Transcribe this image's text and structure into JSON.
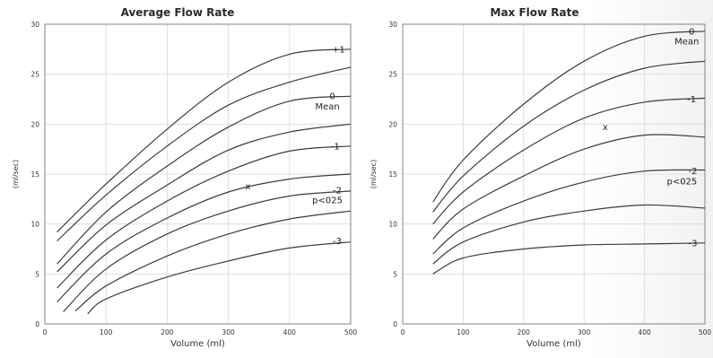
{
  "chart_data": [
    {
      "type": "line",
      "title": "Average Flow Rate",
      "xlabel": "Volume (ml)",
      "ylabel": "(ml/sec)",
      "xlim": [
        0,
        500
      ],
      "ylim": [
        0,
        30
      ],
      "xticks": [
        0,
        100,
        200,
        300,
        400,
        "500"
      ],
      "yticks": [
        0,
        5,
        10,
        15,
        20,
        25,
        30
      ],
      "grid": true,
      "series": [
        {
          "name": "+1",
          "x": [
            20,
            100,
            200,
            300,
            400,
            500
          ],
          "y": [
            9.2,
            14.0,
            19.5,
            24.2,
            27.0,
            27.5
          ]
        },
        {
          "x": [
            20,
            100,
            200,
            300,
            400,
            500
          ],
          "y": [
            8.3,
            12.9,
            17.8,
            21.9,
            24.2,
            25.7
          ]
        },
        {
          "name": "0",
          "x": [
            20,
            100,
            200,
            300,
            400,
            500
          ],
          "y": [
            6.0,
            11.2,
            15.8,
            19.7,
            22.3,
            22.8
          ]
        },
        {
          "x": [
            20,
            100,
            200,
            300,
            400,
            500
          ],
          "y": [
            5.2,
            9.9,
            13.9,
            17.4,
            19.2,
            20.0
          ]
        },
        {
          "name": "-1",
          "x": [
            20,
            100,
            200,
            300,
            400,
            500
          ],
          "y": [
            3.6,
            8.4,
            12.3,
            15.3,
            17.3,
            17.8
          ]
        },
        {
          "x": [
            20,
            100,
            200,
            300,
            400,
            500
          ],
          "y": [
            2.2,
            7.0,
            10.6,
            13.2,
            14.5,
            15.0
          ]
        },
        {
          "name": "-2",
          "x": [
            30,
            100,
            200,
            300,
            400,
            500
          ],
          "y": [
            1.2,
            5.5,
            9.0,
            11.3,
            12.8,
            13.3
          ]
        },
        {
          "x": [
            50,
            100,
            200,
            300,
            400,
            500
          ],
          "y": [
            1.3,
            3.8,
            6.8,
            9.0,
            10.5,
            11.3
          ]
        },
        {
          "name": "-3",
          "x": [
            70,
            100,
            200,
            300,
            400,
            500
          ],
          "y": [
            1.0,
            2.5,
            4.7,
            6.3,
            7.6,
            8.2
          ]
        }
      ],
      "annotations": [
        {
          "text": "+1",
          "x": 480,
          "y": 27.5
        },
        {
          "text": "0",
          "x": 470,
          "y": 22.8
        },
        {
          "text": "Mean",
          "x": 462,
          "y": 21.8
        },
        {
          "text": "-1",
          "x": 475,
          "y": 17.8
        },
        {
          "text": "-2",
          "x": 478,
          "y": 13.4
        },
        {
          "text": "p<025",
          "x": 462,
          "y": 12.4
        },
        {
          "text": "-3",
          "x": 478,
          "y": 8.3
        },
        {
          "text": "x",
          "x": 332,
          "y": 13.8
        }
      ]
    },
    {
      "type": "line",
      "title": "Max Flow Rate",
      "xlabel": "Volume (ml)",
      "ylabel": "(ml/sec)",
      "xlim": [
        0,
        500
      ],
      "ylim": [
        0,
        30
      ],
      "xticks": [
        0,
        100,
        200,
        300,
        400,
        "500"
      ],
      "yticks": [
        0,
        5,
        10,
        15,
        20,
        25,
        30
      ],
      "grid": true,
      "series": [
        {
          "name": "0",
          "x": [
            50,
            100,
            200,
            300,
            400,
            500
          ],
          "y": [
            12.2,
            16.4,
            22.0,
            26.3,
            28.8,
            29.3
          ]
        },
        {
          "x": [
            50,
            100,
            200,
            300,
            400,
            500
          ],
          "y": [
            11.2,
            14.8,
            19.8,
            23.4,
            25.6,
            26.3
          ]
        },
        {
          "name": "-1",
          "x": [
            50,
            100,
            200,
            300,
            400,
            500
          ],
          "y": [
            10.0,
            13.2,
            17.4,
            20.6,
            22.2,
            22.6
          ]
        },
        {
          "x": [
            50,
            100,
            200,
            300,
            400,
            500
          ],
          "y": [
            8.5,
            11.5,
            14.8,
            17.5,
            18.9,
            18.7
          ]
        },
        {
          "name": "-2",
          "x": [
            50,
            100,
            200,
            300,
            400,
            500
          ],
          "y": [
            7.0,
            9.6,
            12.3,
            14.2,
            15.3,
            15.4
          ]
        },
        {
          "x": [
            50,
            100,
            200,
            300,
            400,
            500
          ],
          "y": [
            6.0,
            8.2,
            10.2,
            11.3,
            11.9,
            11.6
          ]
        },
        {
          "name": "-3",
          "x": [
            50,
            100,
            200,
            300,
            400,
            500
          ],
          "y": [
            5.0,
            6.6,
            7.5,
            7.9,
            8.0,
            8.1
          ]
        }
      ],
      "annotations": [
        {
          "text": "0",
          "x": 478,
          "y": 29.3
        },
        {
          "text": "Mean",
          "x": 470,
          "y": 28.3
        },
        {
          "text": "-1",
          "x": 478,
          "y": 22.5
        },
        {
          "text": "-2",
          "x": 480,
          "y": 15.3
        },
        {
          "text": "p<025",
          "x": 462,
          "y": 14.3
        },
        {
          "text": "-3",
          "x": 480,
          "y": 8.1
        },
        {
          "text": "x",
          "x": 335,
          "y": 19.7
        }
      ]
    }
  ],
  "colors": {
    "line": "#3c3c3c",
    "grid": "#d8d8d8",
    "axis": "#7a7a7a",
    "text": "#333333"
  }
}
